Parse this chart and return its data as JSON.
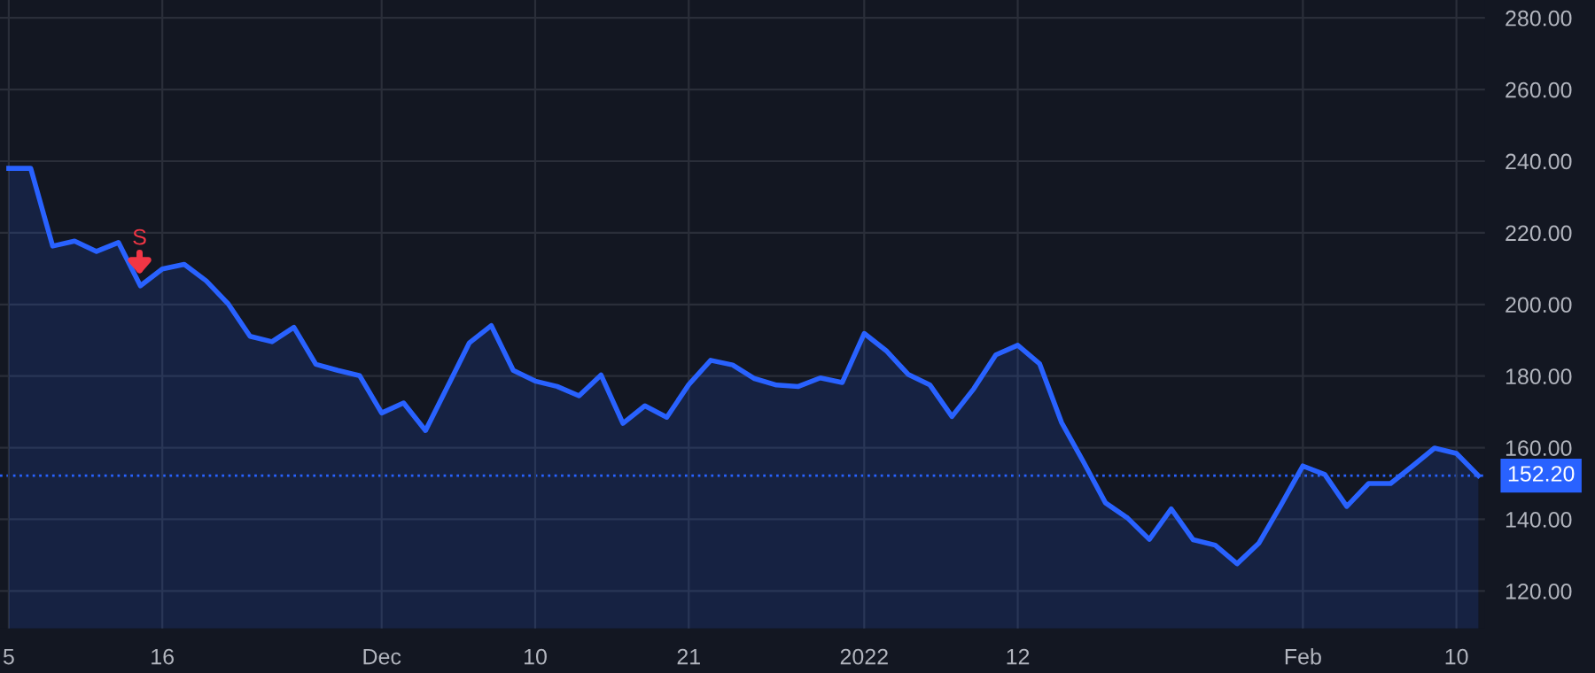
{
  "chart_data": {
    "type": "area",
    "categories": [
      "5",
      null,
      null,
      null,
      null,
      null,
      null,
      "16",
      null,
      null,
      null,
      null,
      null,
      null,
      null,
      null,
      null,
      "Dec",
      null,
      null,
      null,
      null,
      null,
      null,
      "10",
      null,
      null,
      null,
      null,
      null,
      null,
      "21",
      null,
      null,
      null,
      null,
      null,
      null,
      null,
      "2022",
      null,
      null,
      null,
      null,
      null,
      null,
      "12",
      null,
      null,
      null,
      null,
      null,
      null,
      null,
      null,
      null,
      null,
      null,
      null,
      "Feb",
      null,
      null,
      null,
      null,
      null,
      null,
      "10",
      null
    ],
    "series": [
      {
        "color": "#2962ff",
        "values": [
          238,
          238,
          216.3,
          217.7,
          214.8,
          217.3,
          205.2,
          209.9,
          211.2,
          206.6,
          200.2,
          191.1,
          189.6,
          193.6,
          183.3,
          181.6,
          180.1,
          169.7,
          172.5,
          164.8,
          177,
          189.3,
          194.1,
          181.6,
          178.6,
          177.1,
          174.5,
          180.3,
          166.8,
          171.7,
          168.5,
          177.6,
          184.4,
          183.1,
          179.3,
          177.5,
          177.1,
          179.5,
          178.2,
          191.9,
          187.1,
          180.5,
          177.5,
          168.7,
          176.5,
          185.9,
          188.6,
          183.4,
          167,
          156,
          144.6,
          140.4,
          134.4,
          142.9,
          134.3,
          132.8,
          127.6,
          133.4,
          144,
          154.9,
          152.5,
          143.6,
          150,
          150,
          154.9,
          159.9,
          158.4,
          152.2
        ]
      }
    ],
    "ylim": [
      109.5,
      285
    ],
    "yticks": [
      {
        "value": 120,
        "label": "120.00"
      },
      {
        "value": 140,
        "label": "140.00"
      },
      {
        "value": 160,
        "label": "160.00"
      },
      {
        "value": 180,
        "label": "180.00"
      },
      {
        "value": 200,
        "label": "200.00"
      },
      {
        "value": 220,
        "label": "220.00"
      },
      {
        "value": 240,
        "label": "240.00"
      },
      {
        "value": 260,
        "label": "260.00"
      },
      {
        "value": 280,
        "label": "280.00"
      }
    ],
    "ref_lines": [
      {
        "axis": "y",
        "value": 152.2,
        "label": "152.20",
        "color": "#2962ff",
        "line_style": "dotted"
      }
    ],
    "annotations": [
      "S"
    ],
    "grid": true,
    "legend": false,
    "marker": "none",
    "line_style": "solid"
  }
}
